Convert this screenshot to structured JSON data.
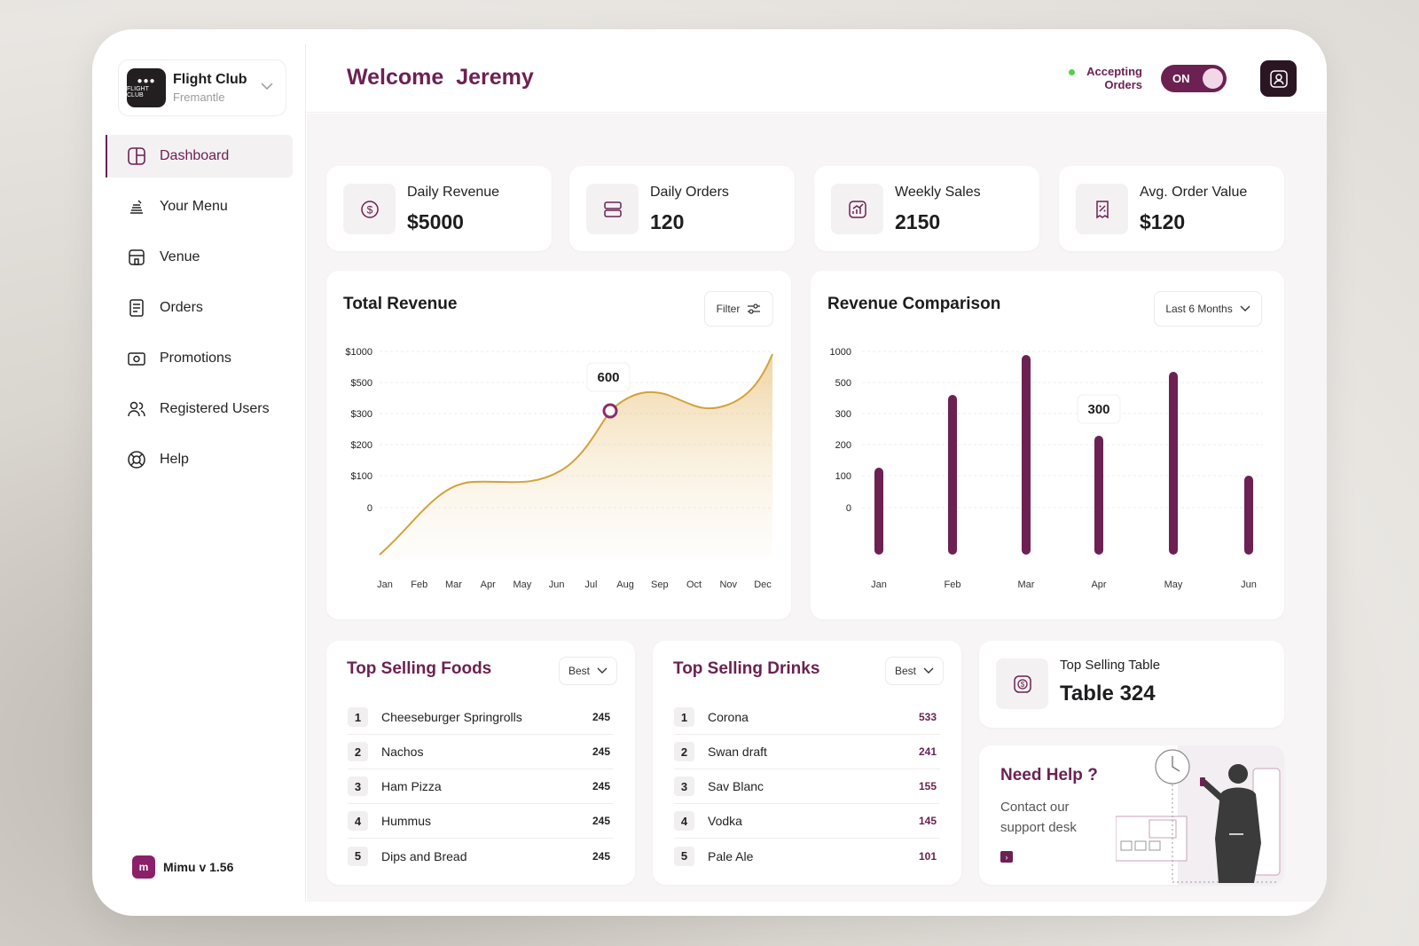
{
  "brand": {
    "name": "Flight Club",
    "location": "Fremantle",
    "logo_text": "FLIGHT CLUB"
  },
  "nav": [
    {
      "label": "Dashboard",
      "icon": "dashboard-icon",
      "active": true
    },
    {
      "label": "Your Menu",
      "icon": "menu-icon"
    },
    {
      "label": "Venue",
      "icon": "venue-icon"
    },
    {
      "label": "Orders",
      "icon": "orders-icon"
    },
    {
      "label": "Promotions",
      "icon": "promotions-icon"
    },
    {
      "label": "Registered Users",
      "icon": "users-icon"
    },
    {
      "label": "Help",
      "icon": "help-icon"
    }
  ],
  "version": {
    "logo": "m",
    "label": "Mimu v 1.56"
  },
  "header": {
    "welcome": "Welcome",
    "user": "Jeremy",
    "accepting": "Accepting",
    "orders": "Orders",
    "toggle": "ON"
  },
  "stats": [
    {
      "label": "Daily Revenue",
      "value": "$5000",
      "icon": "dollar-icon"
    },
    {
      "label": "Daily Orders",
      "value": "120",
      "icon": "orders-stack-icon"
    },
    {
      "label": "Weekly Sales",
      "value": "2150",
      "icon": "chart-up-icon"
    },
    {
      "label": "Avg. Order Value",
      "value": "$120",
      "icon": "receipt-percent-icon"
    }
  ],
  "total_revenue": {
    "title": "Total Revenue",
    "filter": "Filter"
  },
  "revenue_comparison": {
    "title": "Revenue Comparison",
    "range": "Last 6 Months"
  },
  "chart_data": [
    {
      "type": "area",
      "title": "Total Revenue",
      "x": [
        "Jan",
        "Feb",
        "Mar",
        "Apr",
        "May",
        "Jun",
        "Jul",
        "Aug",
        "Sep",
        "Oct",
        "Nov",
        "Dec"
      ],
      "y_ticks": [
        "$1000",
        "$500",
        "$300",
        "$200",
        "$100",
        "0"
      ],
      "highlight": {
        "x": "Jul",
        "label": "600"
      },
      "color": "#d4a23a"
    },
    {
      "type": "bar",
      "title": "Revenue Comparison",
      "categories": [
        "Jan",
        "Feb",
        "Mar",
        "Apr",
        "May",
        "Jun"
      ],
      "y_ticks": [
        "1000",
        "500",
        "300",
        "200",
        "100",
        "0"
      ],
      "highlight": {
        "category": "Apr",
        "label": "300"
      },
      "color": "#6c2152"
    }
  ],
  "top_foods": {
    "title": "Top Selling Foods",
    "filter": "Best",
    "items": [
      {
        "rank": "1",
        "name": "Cheeseburger Springrolls",
        "value": "245"
      },
      {
        "rank": "2",
        "name": "Nachos",
        "value": "245"
      },
      {
        "rank": "3",
        "name": "Ham Pizza",
        "value": "245"
      },
      {
        "rank": "4",
        "name": "Hummus",
        "value": "245"
      },
      {
        "rank": "5",
        "name": "Dips and Bread",
        "value": "245"
      }
    ]
  },
  "top_drinks": {
    "title": "Top Selling Drinks",
    "filter": "Best",
    "items": [
      {
        "rank": "1",
        "name": "Corona",
        "value": "533"
      },
      {
        "rank": "2",
        "name": "Swan draft",
        "value": "241"
      },
      {
        "rank": "3",
        "name": "Sav Blanc",
        "value": "155"
      },
      {
        "rank": "4",
        "name": "Vodka",
        "value": "145"
      },
      {
        "rank": "5",
        "name": "Pale Ale",
        "value": "101"
      }
    ]
  },
  "top_table": {
    "label": "Top Selling Table",
    "value": "Table 324"
  },
  "help": {
    "title": "Need Help ?",
    "text": "Contact our support desk"
  }
}
